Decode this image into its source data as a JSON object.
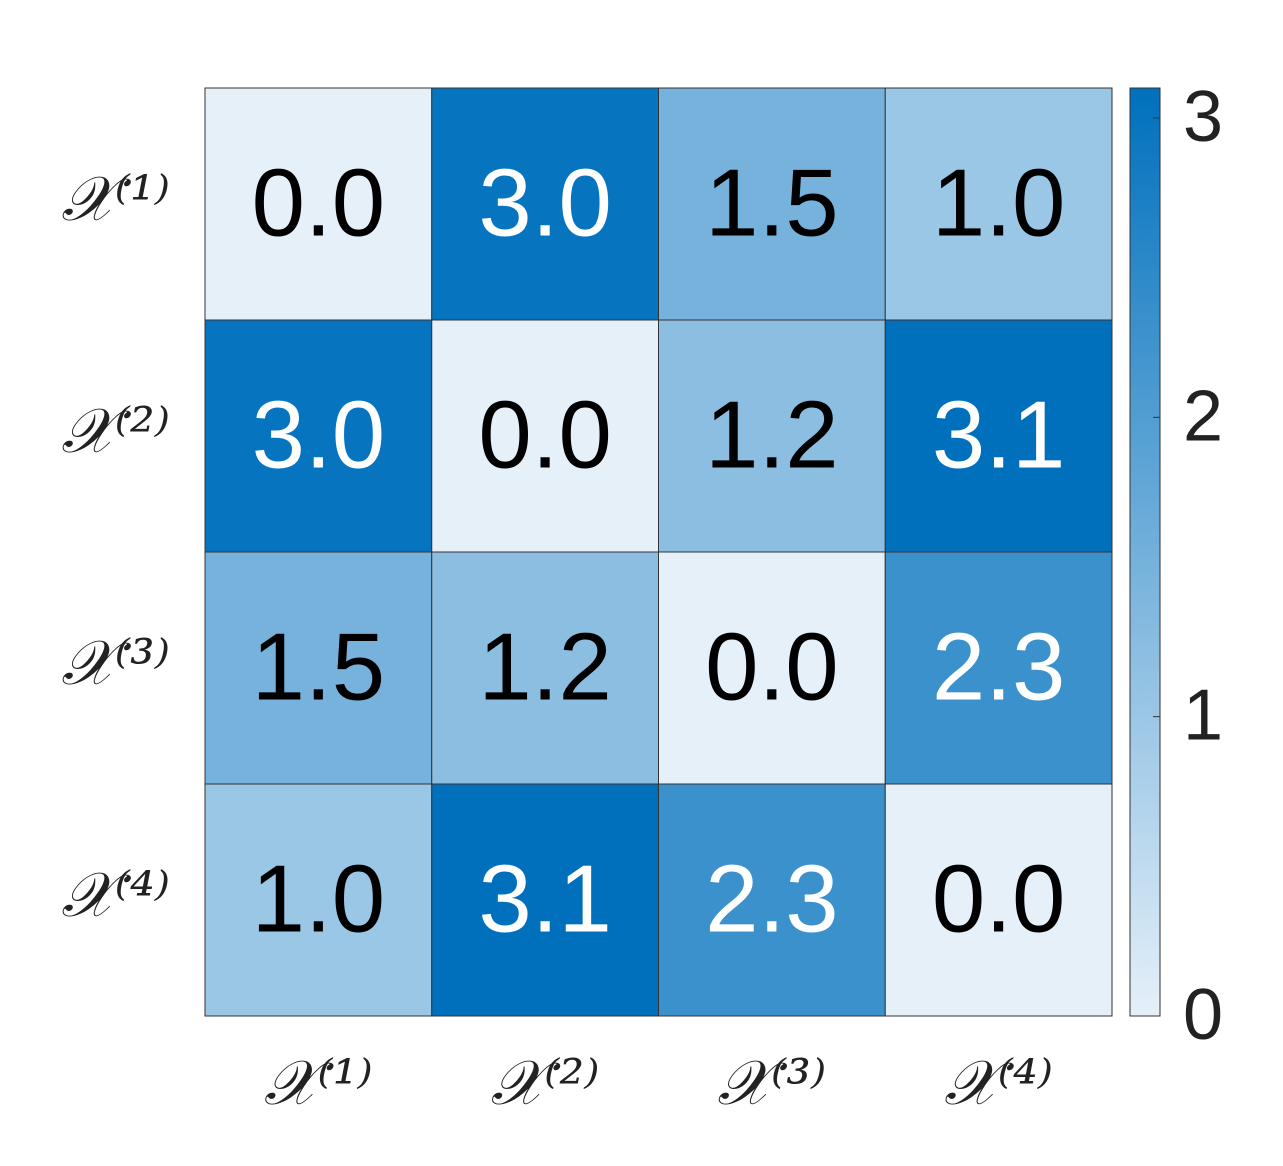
{
  "chart_data": {
    "type": "heatmap",
    "x_categories": [
      "𝒳⁽¹⁾",
      "𝒳⁽²⁾",
      "𝒳⁽³⁾",
      "𝒳⁽⁴⁾"
    ],
    "y_categories": [
      "𝒳⁽¹⁾",
      "𝒳⁽²⁾",
      "𝒳⁽³⁾",
      "𝒳⁽⁴⁾"
    ],
    "values": [
      [
        0,
        3.0,
        1.5,
        1.0
      ],
      [
        3.0,
        0,
        1.2,
        3.1
      ],
      [
        1.5,
        1.2,
        0,
        2.3
      ],
      [
        1.0,
        3.1,
        2.3,
        0
      ]
    ],
    "value_labels": [
      [
        "0.0",
        "3.0",
        "1.5",
        "1.0"
      ],
      [
        "3.0",
        "0.0",
        "1.2",
        "3.1"
      ],
      [
        "1.5",
        "1.2",
        "0.0",
        "2.3"
      ],
      [
        "1.0",
        "3.1",
        "2.3",
        "0.0"
      ]
    ],
    "colormap": [
      "#e5f0f9",
      "#0070bd"
    ],
    "clim": [
      0,
      3.1
    ],
    "colorbar_ticks": [
      0,
      1,
      2,
      3
    ]
  }
}
